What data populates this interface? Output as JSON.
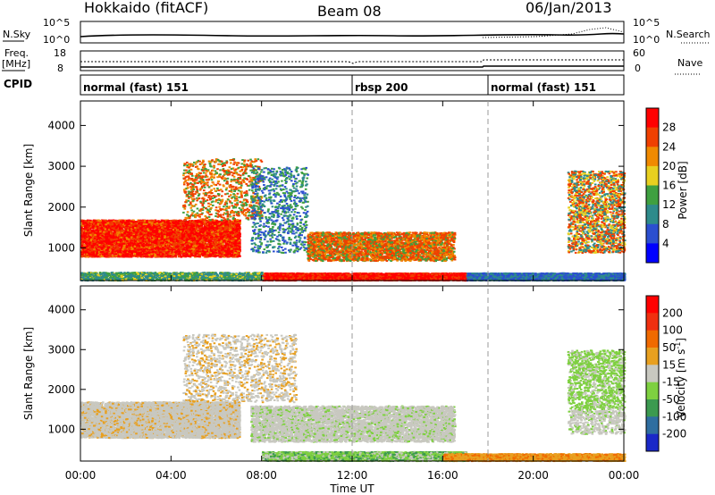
{
  "header": {
    "station": "Hokkaido (fitACF)",
    "beam": "Beam 08",
    "date": "06/Jan/2013"
  },
  "noise_panel": {
    "left_label": "N.Sky",
    "right_label": "N.Search",
    "ticks_left": [
      "10^5",
      "10^0"
    ],
    "ticks_right": [
      "10^5",
      "10^0"
    ]
  },
  "freq_panel": {
    "left_label_1": "Freq.",
    "left_label_2": "[MHz]",
    "right_label": "Nave",
    "ticks_left": [
      "18",
      "8"
    ],
    "ticks_right": [
      "60",
      "0"
    ]
  },
  "cpid_panel": {
    "label": "CPID",
    "segments": [
      {
        "start_h": 0,
        "end_h": 12,
        "text": "normal (fast) 151"
      },
      {
        "start_h": 12,
        "end_h": 18,
        "text": "rbsp 200"
      },
      {
        "start_h": 18,
        "end_h": 24,
        "text": "normal (fast) 151"
      }
    ]
  },
  "chart_data": [
    {
      "type": "heatmap",
      "name": "power",
      "xlabel": "",
      "ylabel": "Slant Range [km]",
      "xlim": [
        0,
        24
      ],
      "ylim": [
        200,
        4600
      ],
      "yticks": [
        "1000",
        "2000",
        "3000",
        "4000"
      ],
      "colorbar": {
        "label": "Power [dB]",
        "ticks": [
          "4",
          "8",
          "12",
          "16",
          "20",
          "24",
          "28"
        ],
        "colors": [
          "#0000ff",
          "#2b4fd0",
          "#2e8b8b",
          "#3fa040",
          "#e8d020",
          "#f08a00",
          "#f04000",
          "#ff0000"
        ]
      }
    },
    {
      "type": "heatmap",
      "name": "velocity",
      "xlabel": "Time UT",
      "ylabel": "Slant Range [km]",
      "xlim": [
        0,
        24
      ],
      "ylim": [
        200,
        4600
      ],
      "xticks": [
        "00:00",
        "04:00",
        "08:00",
        "12:00",
        "16:00",
        "20:00",
        "00:00"
      ],
      "yticks": [
        "1000",
        "2000",
        "3000",
        "4000"
      ],
      "colorbar": {
        "label": "Velocity [m s",
        "label_exp": "-1",
        "label_end": "]",
        "ticks": [
          "200",
          "100",
          "50",
          "15",
          "-15",
          "-50",
          "-100",
          "-200"
        ],
        "colors": [
          "#1a28c8",
          "#2f6ea0",
          "#3c9a50",
          "#7ed040",
          "#c8c8c0",
          "#e8a020",
          "#f06a00",
          "#f03010",
          "#ff0000"
        ]
      }
    }
  ]
}
